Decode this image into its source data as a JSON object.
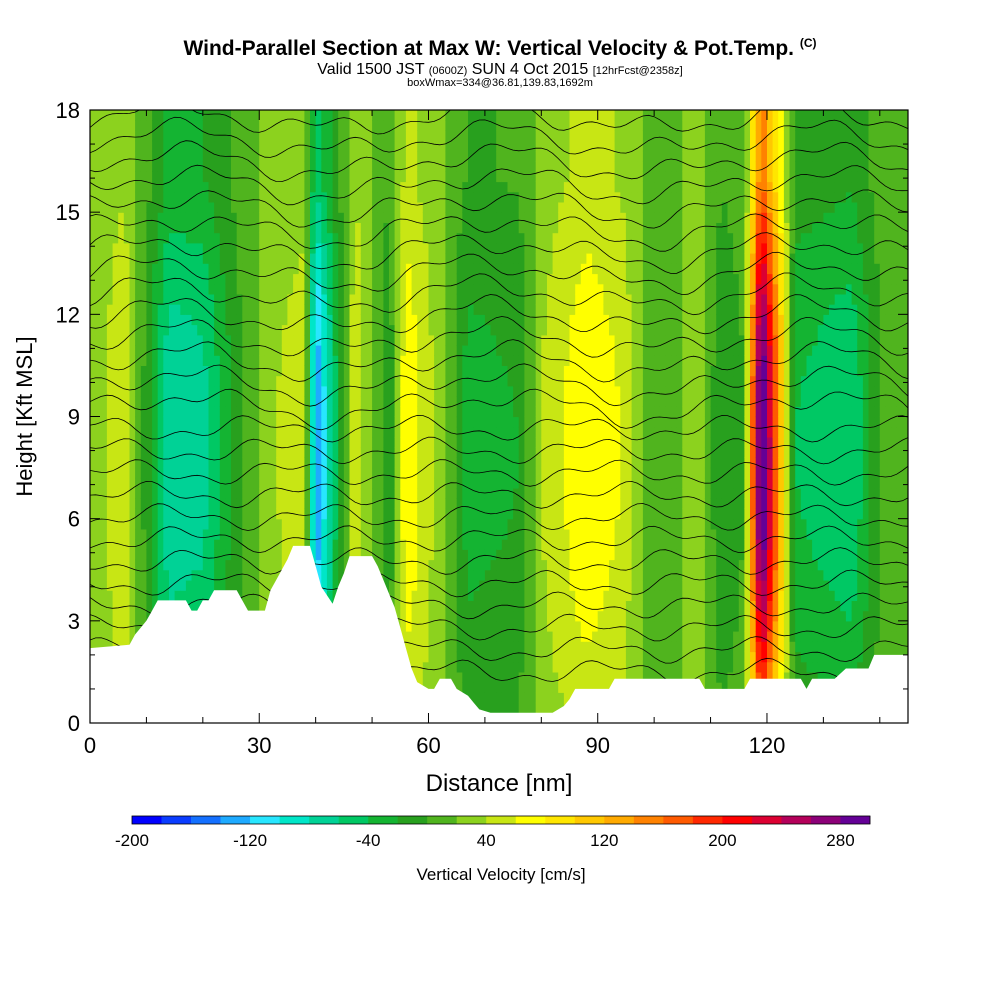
{
  "titles": {
    "main": "Wind-Parallel Section at Max W: Vertical Velocity & Pot.Temp.",
    "main_mark": "(C)",
    "valid_prefix": "Valid 1500 JST",
    "valid_utc": "(0600Z)",
    "valid_date": "SUN 4 Oct 2015",
    "forecast": "[12hrFcst@2358z]",
    "boxwmax": "boxWmax=334@36.81,139.83,1692m"
  },
  "chart_data": {
    "type": "heatmap",
    "xlabel": "Distance [nm]",
    "ylabel": "Height [Kft MSL]",
    "xlim": [
      0,
      145
    ],
    "ylim": [
      0,
      18
    ],
    "x_ticks": [
      0,
      30,
      60,
      90,
      120
    ],
    "y_ticks": [
      0,
      3,
      6,
      9,
      12,
      15,
      18
    ],
    "colorbar": {
      "label": "Vertical Velocity [cm/s]",
      "min": -200,
      "max": 300,
      "step": 20,
      "tick_labels": [
        -200,
        -120,
        -40,
        40,
        120,
        200,
        280
      ],
      "colors": [
        "#0000ff",
        "#0a3cff",
        "#1470ff",
        "#1eaaff",
        "#28e6ff",
        "#00e6c8",
        "#00d296",
        "#00c864",
        "#14b432",
        "#28a01e",
        "#50b41e",
        "#8cd21e",
        "#c8e614",
        "#ffff00",
        "#ffe600",
        "#ffc800",
        "#ffaa00",
        "#ff8200",
        "#ff5a00",
        "#ff2800",
        "#ff0000",
        "#dc0032",
        "#b4005a",
        "#8c0078",
        "#640096"
      ]
    },
    "terrain": [
      [
        0,
        2.2
      ],
      [
        7,
        2.3
      ],
      [
        8,
        2.6
      ],
      [
        9,
        2.8
      ],
      [
        10,
        3.0
      ],
      [
        11,
        3.3
      ],
      [
        12,
        3.6
      ],
      [
        17,
        3.6
      ],
      [
        18,
        3.3
      ],
      [
        19,
        3.3
      ],
      [
        20,
        3.6
      ],
      [
        21,
        3.6
      ],
      [
        22,
        3.9
      ],
      [
        26,
        3.9
      ],
      [
        27,
        3.6
      ],
      [
        28,
        3.3
      ],
      [
        31,
        3.3
      ],
      [
        32,
        3.9
      ],
      [
        33,
        4.2
      ],
      [
        34,
        4.5
      ],
      [
        35,
        4.8
      ],
      [
        36,
        5.2
      ],
      [
        39,
        5.2
      ],
      [
        40,
        4.6
      ],
      [
        41,
        4.0
      ],
      [
        43,
        3.5
      ],
      [
        44,
        4.0
      ],
      [
        45,
        4.4
      ],
      [
        46,
        4.9
      ],
      [
        50,
        4.9
      ],
      [
        51,
        4.6
      ],
      [
        52,
        4.2
      ],
      [
        53,
        3.8
      ],
      [
        54,
        3.4
      ],
      [
        55,
        2.8
      ],
      [
        56,
        2.2
      ],
      [
        57,
        1.6
      ],
      [
        58,
        1.2
      ],
      [
        60,
        1.0
      ],
      [
        61,
        1.0
      ],
      [
        62,
        1.3
      ],
      [
        64,
        1.3
      ],
      [
        65,
        1.0
      ],
      [
        67,
        0.8
      ],
      [
        68,
        0.6
      ],
      [
        69,
        0.4
      ],
      [
        71,
        0.3
      ],
      [
        82,
        0.3
      ],
      [
        84,
        0.5
      ],
      [
        85,
        0.7
      ],
      [
        86,
        1.0
      ],
      [
        92,
        1.0
      ],
      [
        93,
        1.3
      ],
      [
        108,
        1.3
      ],
      [
        109,
        1.0
      ],
      [
        116,
        1.0
      ],
      [
        117,
        1.3
      ],
      [
        126,
        1.3
      ],
      [
        127,
        1.0
      ],
      [
        128,
        1.3
      ],
      [
        132,
        1.3
      ],
      [
        134,
        1.6
      ],
      [
        138,
        1.6
      ],
      [
        139,
        2.0
      ],
      [
        145,
        2.0
      ]
    ],
    "wmax_annotation": "boxWmax=334@36.81,139.83,1692m",
    "series": [
      {
        "name": "Vertical Velocity",
        "columns": [
          {
            "x": 2,
            "w": 35,
            "note": "updraft"
          },
          {
            "x": 6,
            "w": 60
          },
          {
            "x": 14,
            "w": -80
          },
          {
            "x": 20,
            "w": -70
          },
          {
            "x": 28,
            "w": 10
          },
          {
            "x": 33,
            "w": 40
          },
          {
            "x": 38,
            "w": 50
          },
          {
            "x": 40,
            "w": -150
          },
          {
            "x": 47,
            "w": 60
          },
          {
            "x": 53,
            "w": -20
          },
          {
            "x": 56,
            "w": 80
          },
          {
            "x": 62,
            "w": 30
          },
          {
            "x": 67,
            "w": -30
          },
          {
            "x": 76,
            "w": -20
          },
          {
            "x": 80,
            "w": 40
          },
          {
            "x": 88,
            "w": 80
          },
          {
            "x": 94,
            "w": 60
          },
          {
            "x": 100,
            "w": 0
          },
          {
            "x": 108,
            "w": 30
          },
          {
            "x": 112,
            "w": -20
          },
          {
            "x": 116,
            "w": 0
          },
          {
            "x": 119,
            "w": 334
          },
          {
            "x": 125,
            "w": -40
          },
          {
            "x": 135,
            "w": -60
          },
          {
            "x": 142,
            "w": 20
          }
        ]
      }
    ]
  }
}
